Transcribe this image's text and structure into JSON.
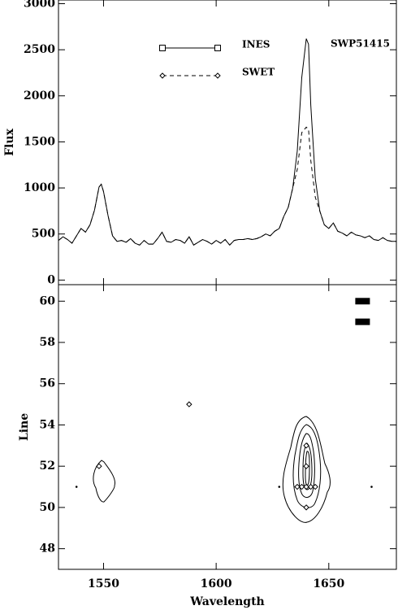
{
  "chart_data": [
    {
      "type": "line",
      "ylabel": "Flux",
      "annotation": "SWP51415",
      "xlim": [
        1530,
        1680
      ],
      "ylim": [
        -50,
        3040
      ],
      "xticks": [
        1550,
        1600,
        1650
      ],
      "yticks": [
        0,
        500,
        1000,
        1500,
        2000,
        2500,
        3000
      ],
      "x": [
        1530,
        1532,
        1534,
        1536,
        1538,
        1540,
        1542,
        1544,
        1546,
        1548,
        1549,
        1550,
        1552,
        1554,
        1556,
        1558,
        1560,
        1562,
        1564,
        1566,
        1568,
        1570,
        1572,
        1574,
        1576,
        1578,
        1580,
        1582,
        1584,
        1586,
        1588,
        1590,
        1592,
        1594,
        1596,
        1598,
        1600,
        1602,
        1604,
        1606,
        1608,
        1610,
        1612,
        1614,
        1616,
        1618,
        1620,
        1622,
        1624,
        1626,
        1628,
        1630,
        1632,
        1634,
        1636,
        1638,
        1640,
        1641,
        1642,
        1644,
        1646,
        1648,
        1650,
        1652,
        1654,
        1656,
        1658,
        1660,
        1662,
        1664,
        1666,
        1668,
        1670,
        1672,
        1674,
        1676,
        1678,
        1680
      ],
      "series": [
        {
          "name": "INES",
          "color": "#000000",
          "dash": false,
          "marker": "square",
          "values": [
            430,
            470,
            440,
            400,
            480,
            560,
            520,
            600,
            760,
            1010,
            1040,
            960,
            700,
            480,
            420,
            430,
            410,
            450,
            400,
            380,
            430,
            390,
            390,
            450,
            520,
            420,
            410,
            440,
            430,
            400,
            470,
            380,
            410,
            440,
            420,
            390,
            430,
            400,
            440,
            380,
            430,
            440,
            440,
            450,
            440,
            450,
            470,
            500,
            480,
            530,
            560,
            690,
            790,
            1000,
            1400,
            2200,
            2620,
            2560,
            1900,
            1100,
            750,
            600,
            560,
            620,
            530,
            510,
            480,
            520,
            490,
            480,
            460,
            480,
            440,
            430,
            460,
            430,
            420,
            420
          ]
        },
        {
          "name": "SWET",
          "color": "#000000",
          "dash": true,
          "marker": "diamond",
          "values": [
            430,
            470,
            440,
            400,
            480,
            560,
            520,
            600,
            760,
            1010,
            1040,
            960,
            700,
            480,
            420,
            430,
            410,
            450,
            400,
            380,
            430,
            390,
            390,
            450,
            520,
            420,
            410,
            440,
            430,
            400,
            470,
            380,
            410,
            440,
            420,
            390,
            430,
            400,
            440,
            380,
            430,
            440,
            440,
            450,
            440,
            450,
            470,
            500,
            480,
            530,
            560,
            690,
            790,
            1000,
            1200,
            1600,
            1660,
            1640,
            1300,
            900,
            750,
            600,
            560,
            620,
            530,
            510,
            480,
            520,
            490,
            480,
            460,
            480,
            440,
            430,
            460,
            430,
            420,
            420
          ]
        }
      ]
    },
    {
      "type": "scatter",
      "xlabel": "Wavelength",
      "ylabel": "Line",
      "xlim": [
        1530,
        1680
      ],
      "ylim": [
        47,
        60.8
      ],
      "xticks": [
        1550,
        1600,
        1650
      ],
      "yticks": [
        48,
        50,
        52,
        54,
        56,
        58,
        60
      ],
      "series": [
        {
          "marker": "diamond",
          "x": [
            1548,
            1588,
            1640,
            1640,
            1640,
            1640,
            1636,
            1638,
            1642,
            1644
          ],
          "values": [
            52,
            55,
            53,
            52,
            51,
            50,
            51,
            51,
            51,
            51
          ]
        },
        {
          "marker": "dot",
          "x": [
            1538,
            1628,
            1669
          ],
          "values": [
            51,
            51,
            51
          ]
        },
        {
          "marker": "bar",
          "x": [
            1665,
            1665
          ],
          "values": [
            60,
            59
          ]
        }
      ]
    }
  ]
}
